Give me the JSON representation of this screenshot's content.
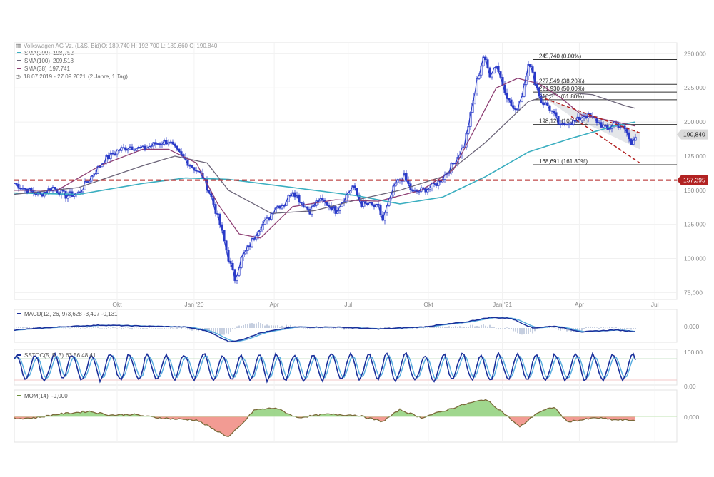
{
  "header": {
    "title": "Volkswagen AG Vz. (L&S, Bid)",
    "ohlc": "O: 189,740  H: 192,700  L: 189,660  C: 190,840",
    "sma200": {
      "label": "SMA(200)",
      "value": "198,752",
      "color": "#3aaec0"
    },
    "sma100": {
      "label": "SMA(100)",
      "value": "209,518",
      "color": "#6b6478"
    },
    "sma38": {
      "label": "SMA(38)",
      "value": "197,741",
      "color": "#8e3f74"
    },
    "range": "18.07.2019 - 27.09.2021",
    "period": "(2 Jahre, 1 Tag)"
  },
  "chart_data": {
    "type": "line",
    "x_ticks": [
      "Okt",
      "Jan '20",
      "Apr",
      "Jul",
      "Okt",
      "Jan '21",
      "Apr",
      "Jul"
    ],
    "price_axis": {
      "ticks": [
        "250,000",
        "225,000",
        "200,000",
        "175,000",
        "150,000",
        "125,000",
        "100,000",
        "75,000"
      ],
      "ylim": [
        70,
        258
      ]
    },
    "price_anchors": [
      [
        0,
        155
      ],
      [
        6,
        150
      ],
      [
        12,
        147
      ],
      [
        18,
        152
      ],
      [
        24,
        146
      ],
      [
        30,
        148
      ],
      [
        36,
        160
      ],
      [
        42,
        172
      ],
      [
        48,
        179
      ],
      [
        54,
        182
      ],
      [
        60,
        180
      ],
      [
        66,
        184
      ],
      [
        72,
        186
      ],
      [
        76,
        178
      ],
      [
        80,
        172
      ],
      [
        84,
        166
      ],
      [
        88,
        160
      ],
      [
        92,
        145
      ],
      [
        96,
        125
      ],
      [
        100,
        100
      ],
      [
        103,
        85
      ],
      [
        106,
        100
      ],
      [
        110,
        110
      ],
      [
        114,
        122
      ],
      [
        118,
        128
      ],
      [
        122,
        138
      ],
      [
        126,
        140
      ],
      [
        130,
        150
      ],
      [
        134,
        141
      ],
      [
        138,
        135
      ],
      [
        142,
        143
      ],
      [
        146,
        140
      ],
      [
        150,
        135
      ],
      [
        154,
        144
      ],
      [
        158,
        153
      ],
      [
        162,
        140
      ],
      [
        166,
        139
      ],
      [
        170,
        137
      ],
      [
        172,
        128
      ],
      [
        175,
        142
      ],
      [
        178,
        155
      ],
      [
        182,
        160
      ],
      [
        186,
        148
      ],
      [
        190,
        150
      ],
      [
        194,
        152
      ],
      [
        198,
        156
      ],
      [
        202,
        163
      ],
      [
        206,
        172
      ],
      [
        210,
        183
      ],
      [
        213,
        205
      ],
      [
        216,
        230
      ],
      [
        219,
        248
      ],
      [
        222,
        235
      ],
      [
        225,
        242
      ],
      [
        228,
        228
      ],
      [
        231,
        215
      ],
      [
        234,
        207
      ],
      [
        237,
        220
      ],
      [
        240,
        244
      ],
      [
        243,
        230
      ],
      [
        246,
        215
      ],
      [
        249,
        212
      ],
      [
        252,
        205
      ],
      [
        255,
        196
      ],
      [
        258,
        200
      ],
      [
        262,
        200
      ],
      [
        266,
        205
      ],
      [
        270,
        203
      ],
      [
        274,
        198
      ],
      [
        277,
        194
      ],
      [
        280,
        200
      ],
      [
        283,
        197
      ],
      [
        286,
        192
      ],
      [
        288,
        183
      ],
      [
        290,
        191
      ]
    ],
    "sma200_anchors": [
      [
        0,
        148
      ],
      [
        30,
        147
      ],
      [
        60,
        155
      ],
      [
        80,
        159
      ],
      [
        100,
        158
      ],
      [
        130,
        152
      ],
      [
        160,
        146
      ],
      [
        180,
        140
      ],
      [
        200,
        145
      ],
      [
        220,
        160
      ],
      [
        240,
        178
      ],
      [
        260,
        188
      ],
      [
        280,
        197
      ],
      [
        290,
        200
      ]
    ],
    "sma100_anchors": [
      [
        0,
        147
      ],
      [
        30,
        152
      ],
      [
        60,
        168
      ],
      [
        75,
        175
      ],
      [
        90,
        170
      ],
      [
        100,
        150
      ],
      [
        120,
        133
      ],
      [
        140,
        135
      ],
      [
        160,
        143
      ],
      [
        180,
        150
      ],
      [
        200,
        160
      ],
      [
        220,
        185
      ],
      [
        240,
        215
      ],
      [
        255,
        222
      ],
      [
        270,
        220
      ],
      [
        285,
        212
      ],
      [
        290,
        210
      ]
    ],
    "sma38_anchors": [
      [
        0,
        150
      ],
      [
        20,
        150
      ],
      [
        40,
        168
      ],
      [
        60,
        180
      ],
      [
        72,
        180
      ],
      [
        85,
        170
      ],
      [
        95,
        140
      ],
      [
        105,
        118
      ],
      [
        115,
        115
      ],
      [
        130,
        138
      ],
      [
        150,
        143
      ],
      [
        170,
        142
      ],
      [
        190,
        150
      ],
      [
        205,
        165
      ],
      [
        215,
        195
      ],
      [
        225,
        225
      ],
      [
        235,
        232
      ],
      [
        245,
        228
      ],
      [
        255,
        218
      ],
      [
        265,
        205
      ],
      [
        275,
        202
      ],
      [
        290,
        197
      ]
    ],
    "fibonacci": [
      {
        "label": "245,740 (0.00%)",
        "price": 245.74
      },
      {
        "label": "227,549 (38.20%)",
        "price": 227.55
      },
      {
        "label": "221,930 (50.00%)",
        "price": 221.93
      },
      {
        "label": "216,311 (61.80%)",
        "price": 216.31
      },
      {
        "label": "198,120 (100.00%)",
        "price": 198.12
      },
      {
        "label": "168,691 (161.80%)",
        "price": 168.69
      }
    ],
    "support_line": {
      "price": 157.395,
      "label": "157,395"
    },
    "last_price": {
      "price": 190.84,
      "label": "190,840"
    },
    "macd": {
      "label": "MACD(12, 26, 9)",
      "values": "-3,628  -3,497  -0,131",
      "axis_label": "0,000",
      "anchors": [
        [
          0,
          -2
        ],
        [
          20,
          1
        ],
        [
          40,
          3
        ],
        [
          60,
          2
        ],
        [
          80,
          1
        ],
        [
          90,
          -3
        ],
        [
          100,
          -14
        ],
        [
          105,
          -13
        ],
        [
          115,
          -5
        ],
        [
          130,
          1
        ],
        [
          150,
          1
        ],
        [
          170,
          -1
        ],
        [
          190,
          1
        ],
        [
          210,
          6
        ],
        [
          222,
          11
        ],
        [
          232,
          10
        ],
        [
          242,
          0
        ],
        [
          252,
          2
        ],
        [
          265,
          -4
        ],
        [
          280,
          -2
        ],
        [
          290,
          -3.6
        ]
      ]
    },
    "stoch": {
      "label": "SSTOC(5, 5, 3)",
      "values": "63,56  48,41",
      "axis_labels": [
        "100,00",
        "0,00"
      ]
    },
    "mom": {
      "label": "MOM(14)",
      "values": "-9,000",
      "axis_label": "0,000",
      "anchors": [
        [
          0,
          -5
        ],
        [
          10,
          -3
        ],
        [
          20,
          5
        ],
        [
          35,
          12
        ],
        [
          45,
          3
        ],
        [
          55,
          5
        ],
        [
          65,
          -2
        ],
        [
          75,
          -6
        ],
        [
          85,
          -8
        ],
        [
          95,
          -35
        ],
        [
          100,
          -48
        ],
        [
          106,
          -20
        ],
        [
          112,
          15
        ],
        [
          122,
          20
        ],
        [
          132,
          -3
        ],
        [
          145,
          5
        ],
        [
          160,
          3
        ],
        [
          172,
          -12
        ],
        [
          180,
          16
        ],
        [
          190,
          -3
        ],
        [
          200,
          12
        ],
        [
          210,
          28
        ],
        [
          220,
          40
        ],
        [
          228,
          10
        ],
        [
          236,
          -25
        ],
        [
          244,
          8
        ],
        [
          252,
          22
        ],
        [
          258,
          -12
        ],
        [
          265,
          -8
        ],
        [
          272,
          -3
        ],
        [
          280,
          -8
        ],
        [
          290,
          -9
        ]
      ]
    }
  }
}
